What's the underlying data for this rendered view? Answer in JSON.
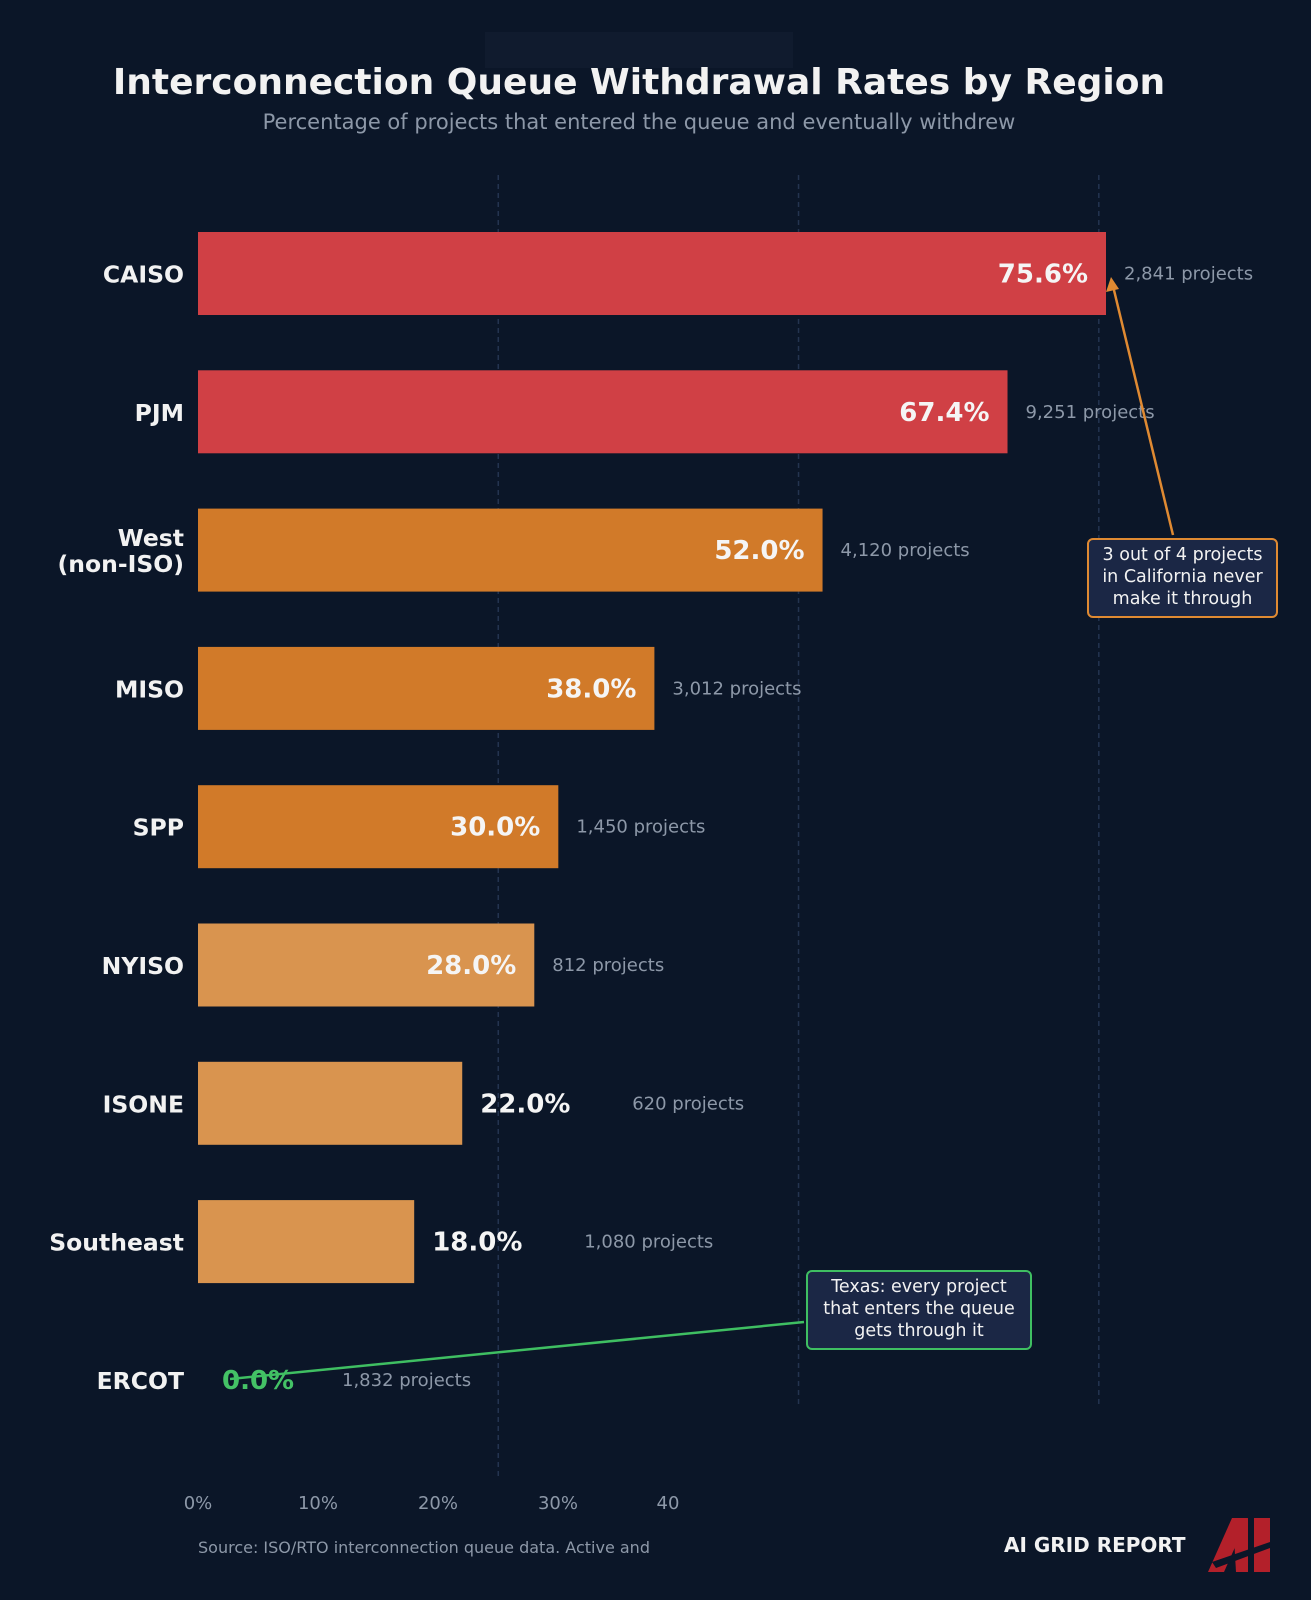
{
  "title": "Interconnection Queue Withdrawal Rates by Region",
  "subtitle": "Percentage of projects that entered the queue and eventually withdrew",
  "source": "Source: ISO/RTO interconnection queue data. Active and",
  "brand": {
    "name": "AI GRID REPORT",
    "logo_icon": "ai-logo-icon"
  },
  "annotations": {
    "caiso": "3 out of 4 projects in California never make it through",
    "ercot": "Texas: every project that enters the queue gets through it"
  },
  "colors": {
    "background": "#0b1628",
    "high": "#d04045",
    "medium": "#d17a29",
    "low": "#d9944f",
    "zero": "#44c266",
    "annotation_orange": "#e08a32",
    "annotation_green": "#3fbf62"
  },
  "chart_data": {
    "type": "bar",
    "orientation": "horizontal",
    "title": "Interconnection Queue Withdrawal Rates by Region",
    "subtitle": "Percentage of projects that entered the queue and eventually withdrew",
    "categories": [
      "CAISO",
      "PJM",
      "West (non-ISO)",
      "MISO",
      "SPP",
      "NYISO",
      "ISONE",
      "Southeast",
      "ERCOT"
    ],
    "values": [
      75.6,
      67.4,
      52.0,
      38.0,
      30.0,
      28.0,
      22.0,
      18.0,
      0.0
    ],
    "value_labels": [
      "75.6%",
      "67.4%",
      "52.0%",
      "38.0%",
      "30.0%",
      "28.0%",
      "22.0%",
      "18.0%",
      "0.0%"
    ],
    "project_counts": [
      "2,841 projects",
      "9,251 projects",
      "4,120 projects",
      "3,012 projects",
      "1,450 projects",
      "812 projects",
      "620 projects",
      "1,080 projects",
      "1,832 projects"
    ],
    "bar_colors": [
      "#d04045",
      "#d04045",
      "#d17a29",
      "#d17a29",
      "#d17a29",
      "#d9944f",
      "#d9944f",
      "#d9944f",
      "#44c266"
    ],
    "x_ticks": [
      "0%",
      "10%",
      "20%",
      "30%",
      "40"
    ],
    "xlim": [
      0,
      75.6
    ],
    "grid": "vertical dashed lines at 25%, 50%, 75%",
    "legend": "none"
  }
}
